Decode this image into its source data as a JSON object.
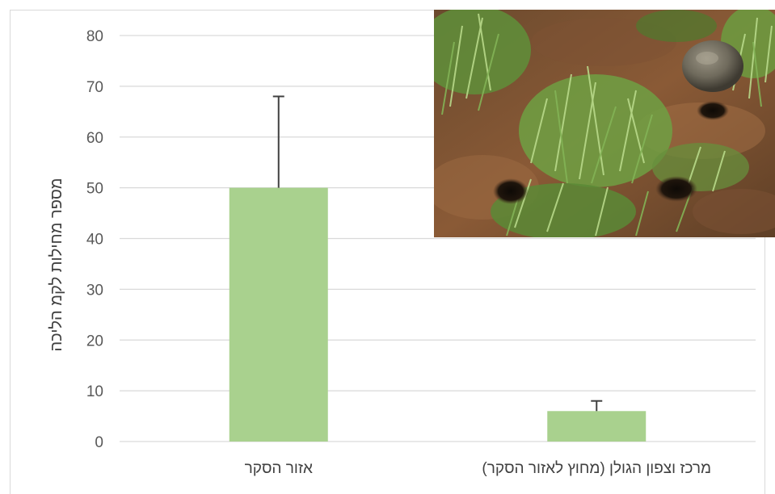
{
  "chart_data": {
    "type": "bar",
    "categories": [
      "אזור הסקר",
      "מרכז וצפון הגולן (מחוץ לאזור הסקר)"
    ],
    "values": [
      50,
      6
    ],
    "error_bars": [
      18,
      2
    ],
    "ylabel": "מספר מחילות לקמ הליכה",
    "xlabel": "",
    "title": "",
    "ylim": [
      0,
      80
    ],
    "yticks": [
      0,
      10,
      20,
      30,
      40,
      50,
      60,
      70,
      80
    ],
    "grid": true,
    "bar_color": "#a9d18e",
    "error_color": "#404040",
    "grid_color": "#d9d9d9"
  },
  "inset_photo": {
    "subject": "burrow-holes-in-grass-photo"
  }
}
